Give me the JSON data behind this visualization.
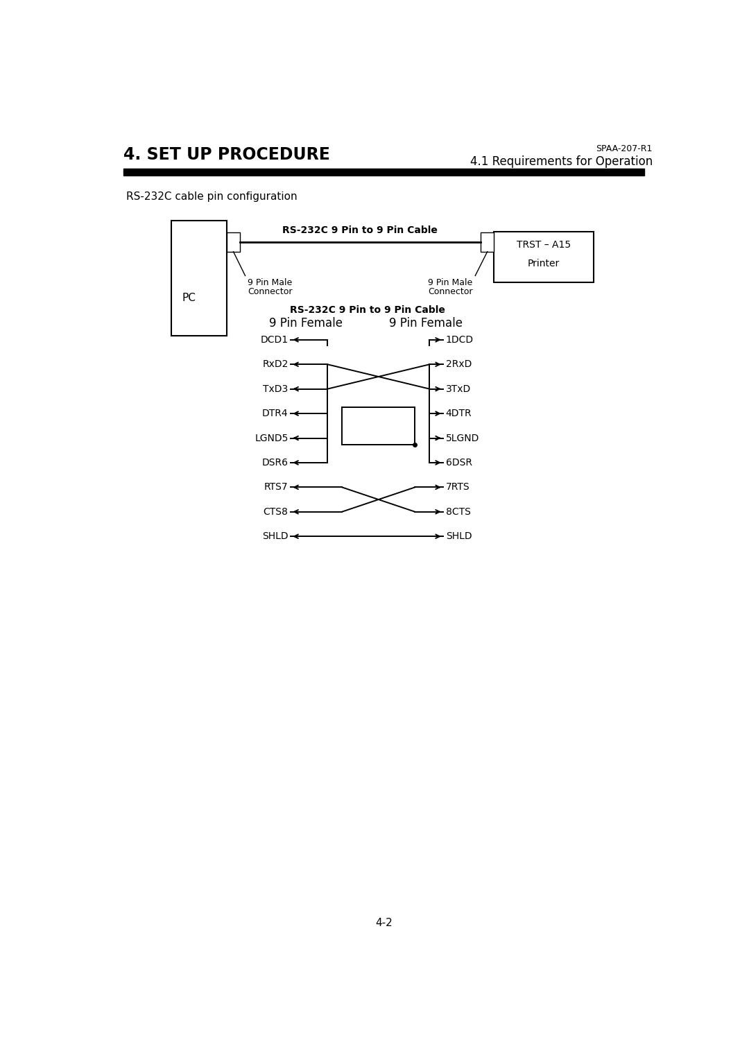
{
  "page_title": "4. SET UP PROCEDURE",
  "page_subtitle_right": "SPAA-207-R1",
  "page_subtitle_right2": "4.1 Requirements for Operation",
  "section_label": "RS-232C cable pin configuration",
  "cable_label_top": "RS-232C 9 Pin to 9 Pin Cable",
  "cable_label_bottom": "RS-232C 9 Pin to 9 Pin Cable",
  "left_box_label": "PC",
  "right_box_label1": "TRST – A15",
  "right_box_label2": "Printer",
  "left_connector_label1": "9 Pin Male",
  "left_connector_label2": "Connector",
  "right_connector_label1": "9 Pin Male",
  "right_connector_label2": "Connector",
  "left_header": "9 Pin Female",
  "right_header": "9 Pin Female",
  "left_pins": [
    "DCD1",
    "RxD2",
    "TxD3",
    "DTR4",
    "LGND5",
    "DSR6",
    "RTS7",
    "CTS8",
    "SHLD"
  ],
  "right_pins": [
    "1DCD",
    "2RxD",
    "3TxD",
    "4DTR",
    "5LGND",
    "6DSR",
    "7RTS",
    "8CTS",
    "SHLD"
  ],
  "page_number": "4-2",
  "bg_color": "#ffffff",
  "text_color": "#000000",
  "title_fontsize": 17,
  "subtitle_fontsize": 9,
  "section_fontsize": 11,
  "header_fontsize": 12,
  "pin_fontsize": 10,
  "connector_fontsize": 9,
  "cable_label_fontsize": 10,
  "page_num_fontsize": 11
}
